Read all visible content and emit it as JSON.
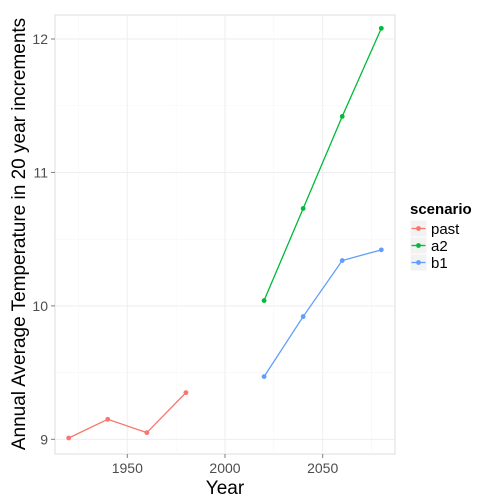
{
  "chart_data": {
    "type": "line",
    "title": "",
    "xlabel": "Year",
    "ylabel": "Annual Average Temperature in 20 year increments",
    "xlim": [
      1913,
      2087
    ],
    "ylim": [
      8.89,
      12.18
    ],
    "x_ticks": [
      1950,
      2000,
      2050
    ],
    "y_ticks": [
      9,
      10,
      11,
      12
    ],
    "grid": true,
    "legend": {
      "title": "scenario",
      "position": "right"
    },
    "series": [
      {
        "name": "past",
        "color": "#F8766D",
        "points": [
          [
            1920,
            9.01
          ],
          [
            1940,
            9.15
          ],
          [
            1960,
            9.05
          ],
          [
            1980,
            9.35
          ]
        ]
      },
      {
        "name": "a2",
        "color": "#00BA38",
        "points": [
          [
            2020,
            10.04
          ],
          [
            2040,
            10.73
          ],
          [
            2060,
            11.42
          ],
          [
            2080,
            12.08
          ]
        ]
      },
      {
        "name": "b1",
        "color": "#619CFF",
        "points": [
          [
            2020,
            9.47
          ],
          [
            2040,
            9.92
          ],
          [
            2060,
            10.34
          ],
          [
            2080,
            10.42
          ]
        ]
      }
    ]
  }
}
